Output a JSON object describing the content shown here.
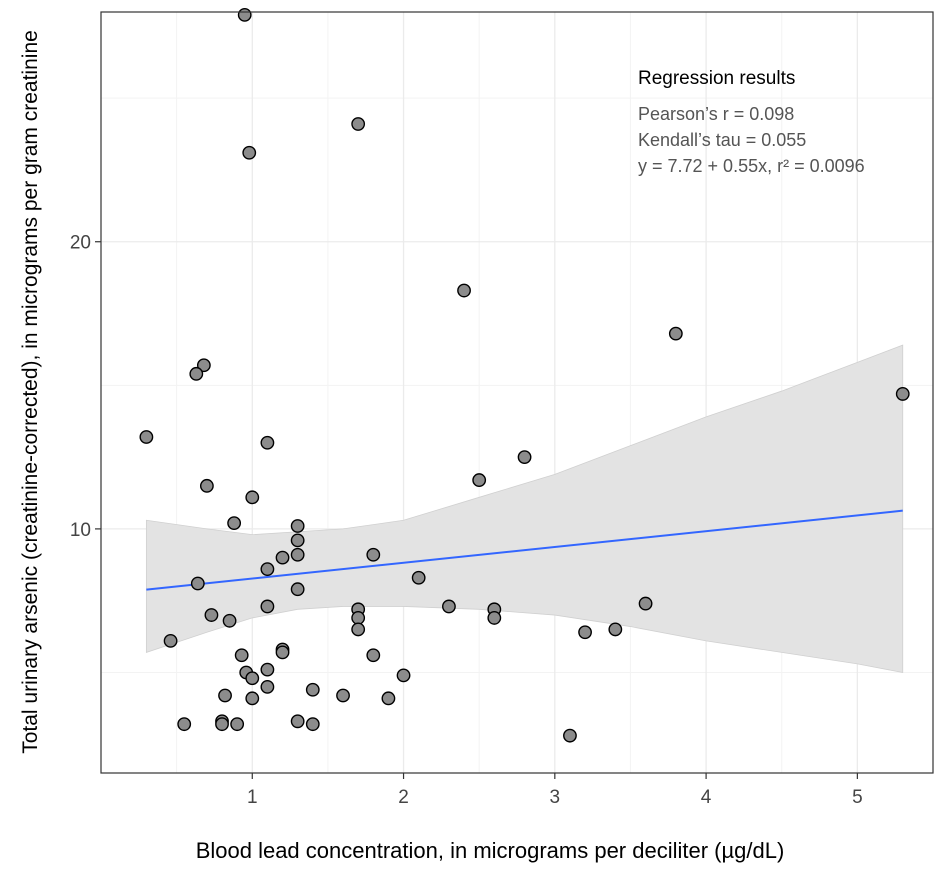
{
  "chart_data": {
    "type": "scatter",
    "xlabel": "Blood lead concentration, in micrograms per deciliter (µg/dL)",
    "ylabel": "Total urinary arsenic (creatinine-corrected), in micrograms per gram creatinine",
    "xlim": [
      0.0,
      5.5
    ],
    "ylim": [
      1.5,
      28.0
    ],
    "x_ticks": [
      1,
      2,
      3,
      4,
      5
    ],
    "y_ticks": [
      10,
      20
    ],
    "grid": true,
    "annotation": {
      "title": "Regression results",
      "lines": [
        "Pearson’s r = 0.098",
        "Kendall’s tau = 0.055",
        "y = 7.72 + 0.55x, r² = 0.0096"
      ]
    },
    "regression": {
      "intercept": 7.72,
      "slope": 0.55,
      "x_start": 0.3,
      "x_end": 5.3
    },
    "confidence_band": [
      [
        0.3,
        5.7,
        10.3
      ],
      [
        0.7,
        6.4,
        10.0
      ],
      [
        1.0,
        6.9,
        9.8
      ],
      [
        1.3,
        7.2,
        9.9
      ],
      [
        1.6,
        7.3,
        10.0
      ],
      [
        2.0,
        7.3,
        10.3
      ],
      [
        2.5,
        7.2,
        11.1
      ],
      [
        3.0,
        7.0,
        11.9
      ],
      [
        3.5,
        6.6,
        12.9
      ],
      [
        4.0,
        6.1,
        13.9
      ],
      [
        4.5,
        5.7,
        14.8
      ],
      [
        5.0,
        5.3,
        15.8
      ],
      [
        5.3,
        5.0,
        16.4
      ]
    ],
    "colors": {
      "points": "#8c8c8c",
      "point_stroke": "#000000",
      "line": "#3366ff",
      "band": "#e3e3e3",
      "grid": "#ebebeb"
    },
    "points": [
      [
        0.95,
        27.9
      ],
      [
        0.98,
        23.1
      ],
      [
        1.7,
        24.1
      ],
      [
        2.4,
        18.3
      ],
      [
        3.8,
        16.8
      ],
      [
        0.68,
        15.7
      ],
      [
        0.63,
        15.4
      ],
      [
        5.3,
        14.7
      ],
      [
        0.3,
        13.2
      ],
      [
        1.1,
        13.0
      ],
      [
        2.8,
        12.5
      ],
      [
        2.5,
        11.7
      ],
      [
        0.7,
        11.5
      ],
      [
        1.0,
        11.1
      ],
      [
        0.88,
        10.2
      ],
      [
        1.3,
        10.1
      ],
      [
        1.3,
        9.6
      ],
      [
        1.3,
        9.1
      ],
      [
        1.8,
        9.1
      ],
      [
        1.2,
        9.0
      ],
      [
        1.1,
        8.6
      ],
      [
        2.1,
        8.3
      ],
      [
        0.64,
        8.1
      ],
      [
        1.3,
        7.9
      ],
      [
        3.6,
        7.4
      ],
      [
        2.3,
        7.3
      ],
      [
        1.1,
        7.3
      ],
      [
        1.7,
        7.2
      ],
      [
        2.6,
        7.2
      ],
      [
        0.73,
        7.0
      ],
      [
        1.7,
        6.9
      ],
      [
        2.6,
        6.9
      ],
      [
        0.85,
        6.8
      ],
      [
        1.7,
        6.5
      ],
      [
        3.4,
        6.5
      ],
      [
        3.2,
        6.4
      ],
      [
        0.46,
        6.1
      ],
      [
        1.2,
        5.8
      ],
      [
        1.2,
        5.7
      ],
      [
        0.93,
        5.6
      ],
      [
        1.8,
        5.6
      ],
      [
        0.96,
        5.0
      ],
      [
        1.1,
        5.1
      ],
      [
        1.0,
        4.8
      ],
      [
        2.0,
        4.9
      ],
      [
        1.1,
        4.5
      ],
      [
        1.4,
        4.4
      ],
      [
        0.82,
        4.2
      ],
      [
        1.6,
        4.2
      ],
      [
        1.0,
        4.1
      ],
      [
        1.9,
        4.1
      ],
      [
        0.8,
        3.3
      ],
      [
        0.55,
        3.2
      ],
      [
        0.8,
        3.2
      ],
      [
        0.9,
        3.2
      ],
      [
        1.3,
        3.3
      ],
      [
        1.4,
        3.2
      ],
      [
        3.1,
        2.8
      ]
    ]
  }
}
